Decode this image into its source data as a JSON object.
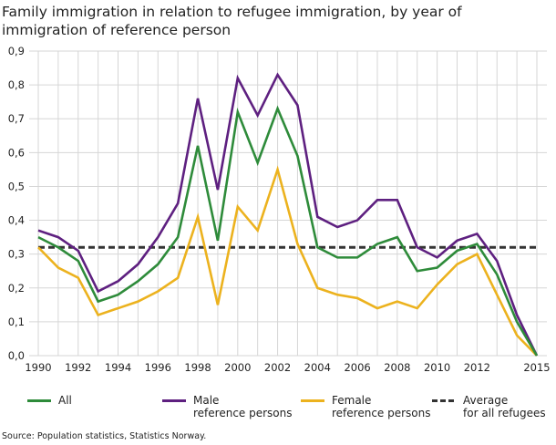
{
  "chart_data": {
    "type": "line",
    "title": "Family immigration in relation to refugee immigration, by year of immigration of reference person",
    "x": [
      1990,
      1991,
      1992,
      1993,
      1994,
      1995,
      1996,
      1997,
      1998,
      1999,
      2000,
      2001,
      2002,
      2003,
      2004,
      2005,
      2006,
      2007,
      2008,
      2009,
      2010,
      2011,
      2012,
      2013,
      2014,
      2015
    ],
    "x_tick_labels": [
      "1990",
      "1992",
      "1994",
      "1996",
      "1998",
      "2000",
      "2002",
      "2004",
      "2006",
      "2008",
      "2010",
      "2012",
      "2015"
    ],
    "y_tick_labels": [
      "0,0",
      "0,1",
      "0,2",
      "0,3",
      "0,4",
      "0,5",
      "0,6",
      "0,7",
      "0,8",
      "0,9"
    ],
    "ylim": [
      0,
      0.9
    ],
    "xlim": [
      1990,
      2015
    ],
    "grid": true,
    "legend_placement": "bottom",
    "series": [
      {
        "name": "All",
        "color": "#2e8b3a",
        "values": [
          0.35,
          0.32,
          0.28,
          0.16,
          0.18,
          0.22,
          0.27,
          0.35,
          0.62,
          0.34,
          0.72,
          0.57,
          0.73,
          0.59,
          0.32,
          0.29,
          0.29,
          0.33,
          0.35,
          0.25,
          0.26,
          0.31,
          0.33,
          0.24,
          0.1,
          0.0
        ]
      },
      {
        "name": "Male reference persons",
        "color": "#5e2080",
        "values": [
          0.37,
          0.35,
          0.31,
          0.19,
          0.22,
          0.27,
          0.35,
          0.45,
          0.76,
          0.49,
          0.82,
          0.71,
          0.83,
          0.74,
          0.41,
          0.38,
          0.4,
          0.46,
          0.46,
          0.32,
          0.29,
          0.34,
          0.36,
          0.28,
          0.12,
          0.0
        ]
      },
      {
        "name": "Female reference persons",
        "color": "#ecb21e",
        "values": [
          0.32,
          0.26,
          0.23,
          0.12,
          0.14,
          0.16,
          0.19,
          0.23,
          0.41,
          0.15,
          0.44,
          0.37,
          0.55,
          0.33,
          0.2,
          0.18,
          0.17,
          0.14,
          0.16,
          0.14,
          0.21,
          0.27,
          0.3,
          0.18,
          0.06,
          0.0
        ]
      },
      {
        "name": "Average for all refugees",
        "color": "#333333",
        "dashed": true,
        "values": [
          0.32,
          0.32,
          0.32,
          0.32,
          0.32,
          0.32,
          0.32,
          0.32,
          0.32,
          0.32,
          0.32,
          0.32,
          0.32,
          0.32,
          0.32,
          0.32,
          0.32,
          0.32,
          0.32,
          0.32,
          0.32,
          0.32,
          0.32,
          0.32,
          0.32,
          0.32
        ]
      }
    ]
  },
  "legend": [
    {
      "line1": "All",
      "line2": ""
    },
    {
      "line1": "Male",
      "line2": "reference persons"
    },
    {
      "line1": "Female",
      "line2": "reference persons"
    },
    {
      "line1": "Average",
      "line2": "for all refugees"
    }
  ],
  "source": "Source: Population statistics, Statistics Norway."
}
